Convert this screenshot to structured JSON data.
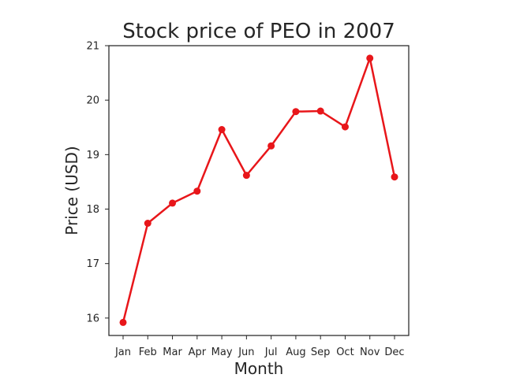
{
  "chart_data": {
    "type": "line",
    "title": "Stock price of PEO in 2007",
    "xlabel": "Month",
    "ylabel": "Price (USD)",
    "categories": [
      "Jan",
      "Feb",
      "Mar",
      "Apr",
      "May",
      "Jun",
      "Jul",
      "Aug",
      "Sep",
      "Oct",
      "Nov",
      "Dec"
    ],
    "series": [
      {
        "values": [
          15.92,
          17.74,
          18.11,
          18.33,
          19.46,
          18.62,
          19.16,
          19.79,
          19.8,
          19.51,
          20.77,
          18.59
        ],
        "color": "#e8161a",
        "marker": "circle"
      }
    ],
    "yticks": [
      16,
      17,
      18,
      19,
      20,
      21
    ],
    "ylim": [
      15.68,
      21.0
    ],
    "grid": false,
    "legend": "none"
  }
}
